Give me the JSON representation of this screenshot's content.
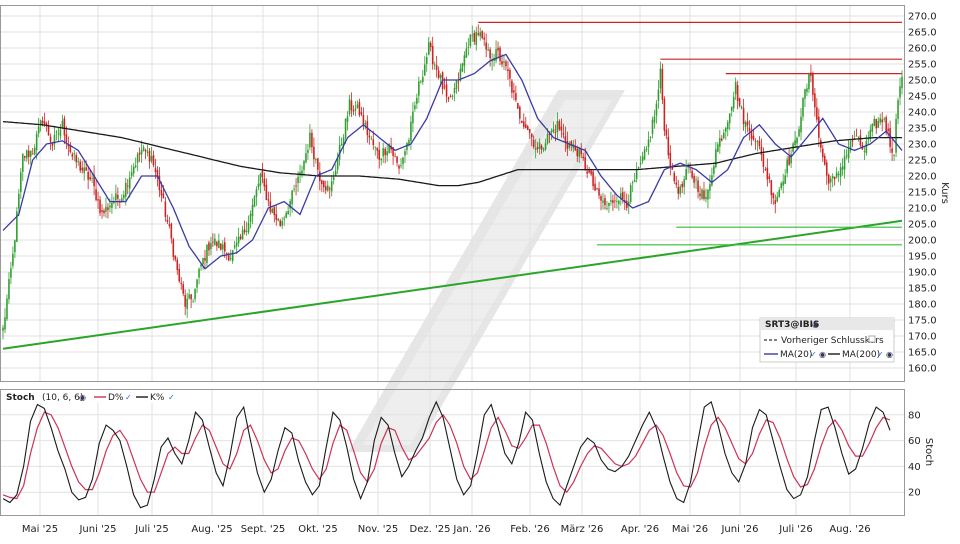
{
  "chart_data": [
    {
      "type": "candlestick",
      "ylabel": "Kurs",
      "ylim": [
        155,
        272
      ],
      "ticks": [
        "160.0",
        "165.0",
        "170.0",
        "175.0",
        "180.0",
        "185.0",
        "190.0",
        "195.0",
        "200.0",
        "205.0",
        "210.0",
        "215.0",
        "220.0",
        "225.0",
        "230.0",
        "235.0",
        "240.0",
        "245.0",
        "250.0",
        "255.0",
        "260.0",
        "265.0",
        "270.0"
      ],
      "legend": {
        "symbol": "SRT3@IBIS",
        "prev_close_label": "Vorheriger Schlusskurs",
        "ma20_label": "MA(20)",
        "ma200_label": "MA(200)"
      },
      "colors": {
        "up": "#2e9e2e",
        "down": "#cc2222",
        "ma20": "#3a3aa6",
        "ma200": "#1a1a1a",
        "trend": "#2aa52a",
        "resistance": "#cc2222",
        "support": "#33bb33"
      },
      "months": [
        "Mai '25",
        "Juni '25",
        "Juli '25",
        "Aug. '25",
        "Sept. '25",
        "Okt. '25",
        "Nov. '25",
        "Dez. '25",
        "Jan. '26",
        "Feb. '26",
        "März '26",
        "Apr. '26",
        "Mai '26",
        "Juni '26",
        "Juli '26",
        "Aug. '26"
      ],
      "price_path": [
        [
          0,
          172
        ],
        [
          5,
          195
        ],
        [
          10,
          226
        ],
        [
          15,
          228
        ],
        [
          20,
          238
        ],
        [
          25,
          230
        ],
        [
          30,
          236
        ],
        [
          35,
          226
        ],
        [
          40,
          222
        ],
        [
          45,
          218
        ],
        [
          50,
          208
        ],
        [
          55,
          212
        ],
        [
          60,
          214
        ],
        [
          65,
          222
        ],
        [
          70,
          228
        ],
        [
          75,
          226
        ],
        [
          80,
          214
        ],
        [
          85,
          200
        ],
        [
          88,
          190
        ],
        [
          92,
          180
        ],
        [
          96,
          182
        ],
        [
          100,
          192
        ],
        [
          105,
          200
        ],
        [
          110,
          198
        ],
        [
          115,
          195
        ],
        [
          120,
          200
        ],
        [
          125,
          208
        ],
        [
          130,
          220
        ],
        [
          135,
          210
        ],
        [
          140,
          205
        ],
        [
          145,
          212
        ],
        [
          150,
          220
        ],
        [
          155,
          232
        ],
        [
          160,
          220
        ],
        [
          165,
          215
        ],
        [
          170,
          228
        ],
        [
          175,
          242
        ],
        [
          180,
          240
        ],
        [
          185,
          232
        ],
        [
          190,
          226
        ],
        [
          195,
          230
        ],
        [
          200,
          222
        ],
        [
          205,
          232
        ],
        [
          210,
          248
        ],
        [
          215,
          260
        ],
        [
          220,
          252
        ],
        [
          225,
          242
        ],
        [
          230,
          250
        ],
        [
          235,
          262
        ],
        [
          240,
          265
        ],
        [
          245,
          258
        ],
        [
          250,
          258
        ],
        [
          255,
          252
        ],
        [
          260,
          240
        ],
        [
          265,
          235
        ],
        [
          270,
          228
        ],
        [
          275,
          232
        ],
        [
          280,
          236
        ],
        [
          285,
          230
        ],
        [
          290,
          228
        ],
        [
          295,
          222
        ],
        [
          300,
          214
        ],
        [
          305,
          210
        ],
        [
          310,
          214
        ],
        [
          315,
          212
        ],
        [
          320,
          220
        ],
        [
          325,
          228
        ],
        [
          330,
          242
        ],
        [
          332,
          252
        ],
        [
          334,
          236
        ],
        [
          338,
          220
        ],
        [
          342,
          215
        ],
        [
          346,
          222
        ],
        [
          350,
          218
        ],
        [
          355,
          212
        ],
        [
          360,
          228
        ],
        [
          365,
          236
        ],
        [
          370,
          248
        ],
        [
          372,
          242
        ],
        [
          375,
          236
        ],
        [
          380,
          232
        ],
        [
          385,
          222
        ],
        [
          390,
          212
        ],
        [
          395,
          222
        ],
        [
          400,
          230
        ],
        [
          405,
          246
        ],
        [
          408,
          252
        ],
        [
          412,
          232
        ],
        [
          416,
          220
        ],
        [
          420,
          218
        ],
        [
          425,
          226
        ],
        [
          430,
          232
        ],
        [
          435,
          228
        ],
        [
          440,
          236
        ],
        [
          445,
          238
        ],
        [
          448,
          230
        ],
        [
          450,
          228
        ],
        [
          452,
          245
        ],
        [
          453,
          250
        ]
      ],
      "ma20_path": [
        [
          0,
          203
        ],
        [
          8,
          208
        ],
        [
          15,
          225
        ],
        [
          22,
          230
        ],
        [
          30,
          231
        ],
        [
          38,
          228
        ],
        [
          46,
          220
        ],
        [
          54,
          212
        ],
        [
          62,
          212
        ],
        [
          70,
          220
        ],
        [
          78,
          220
        ],
        [
          86,
          210
        ],
        [
          94,
          198
        ],
        [
          102,
          191
        ],
        [
          110,
          195
        ],
        [
          118,
          196
        ],
        [
          126,
          200
        ],
        [
          134,
          210
        ],
        [
          142,
          212
        ],
        [
          150,
          208
        ],
        [
          158,
          220
        ],
        [
          166,
          222
        ],
        [
          174,
          232
        ],
        [
          182,
          236
        ],
        [
          190,
          232
        ],
        [
          198,
          228
        ],
        [
          206,
          230
        ],
        [
          214,
          238
        ],
        [
          222,
          250
        ],
        [
          230,
          250
        ],
        [
          238,
          252
        ],
        [
          246,
          256
        ],
        [
          254,
          258
        ],
        [
          262,
          250
        ],
        [
          270,
          238
        ],
        [
          278,
          232
        ],
        [
          286,
          230
        ],
        [
          294,
          228
        ],
        [
          302,
          220
        ],
        [
          310,
          214
        ],
        [
          318,
          210
        ],
        [
          326,
          212
        ],
        [
          334,
          222
        ],
        [
          342,
          224
        ],
        [
          350,
          222
        ],
        [
          358,
          218
        ],
        [
          366,
          222
        ],
        [
          374,
          232
        ],
        [
          382,
          236
        ],
        [
          390,
          230
        ],
        [
          398,
          226
        ],
        [
          406,
          232
        ],
        [
          414,
          238
        ],
        [
          422,
          230
        ],
        [
          430,
          228
        ],
        [
          438,
          230
        ],
        [
          446,
          234
        ],
        [
          454,
          228
        ]
      ],
      "ma200_path": [
        [
          0,
          237
        ],
        [
          20,
          236
        ],
        [
          40,
          234
        ],
        [
          60,
          232
        ],
        [
          80,
          229
        ],
        [
          100,
          226
        ],
        [
          120,
          223
        ],
        [
          140,
          221
        ],
        [
          160,
          220
        ],
        [
          180,
          220
        ],
        [
          200,
          219
        ],
        [
          210,
          218
        ],
        [
          220,
          217
        ],
        [
          230,
          217
        ],
        [
          240,
          218
        ],
        [
          250,
          220
        ],
        [
          260,
          222
        ],
        [
          270,
          222
        ],
        [
          280,
          222
        ],
        [
          300,
          222
        ],
        [
          320,
          222
        ],
        [
          340,
          223
        ],
        [
          360,
          224
        ],
        [
          380,
          227
        ],
        [
          400,
          229
        ],
        [
          420,
          231
        ],
        [
          440,
          232
        ],
        [
          454,
          232
        ]
      ],
      "trend_line": {
        "start": [
          0,
          166
        ],
        "end": [
          454,
          206
        ]
      },
      "resistance_lines": [
        {
          "start": 240,
          "end": 454,
          "y": 268
        },
        {
          "start": 332,
          "end": 454,
          "y": 256.5
        },
        {
          "start": 365,
          "end": 454,
          "y": 252
        }
      ],
      "support_lines": [
        {
          "start": 340,
          "end": 454,
          "y": 204
        },
        {
          "start": 300,
          "end": 454,
          "y": 198.5
        }
      ]
    },
    {
      "type": "line",
      "title": "Stoch",
      "params": "(10, 6, 6)",
      "ylabel": "Stoch",
      "ylim": [
        0,
        100
      ],
      "ticks": [
        "20",
        "40",
        "60",
        "80"
      ],
      "series": [
        {
          "name": "D%",
          "color": "#cc3355"
        },
        {
          "name": "K%",
          "color": "#1a1a1a"
        }
      ],
      "k_values": [
        15,
        12,
        18,
        40,
        75,
        88,
        85,
        70,
        52,
        38,
        20,
        14,
        16,
        30,
        58,
        72,
        68,
        60,
        40,
        18,
        8,
        10,
        30,
        55,
        62,
        50,
        42,
        60,
        82,
        76,
        55,
        35,
        25,
        48,
        78,
        86,
        60,
        35,
        20,
        30,
        52,
        70,
        66,
        44,
        28,
        18,
        25,
        55,
        82,
        76,
        55,
        30,
        15,
        28,
        60,
        78,
        72,
        50,
        32,
        40,
        52,
        62,
        78,
        90,
        78,
        54,
        30,
        18,
        25,
        50,
        80,
        88,
        70,
        50,
        42,
        58,
        82,
        76,
        50,
        28,
        15,
        10,
        25,
        40,
        55,
        62,
        58,
        45,
        38,
        36,
        40,
        48,
        60,
        72,
        82,
        70,
        48,
        28,
        15,
        12,
        28,
        58,
        86,
        90,
        72,
        50,
        35,
        28,
        42,
        70,
        84,
        80,
        60,
        40,
        22,
        15,
        18,
        32,
        60,
        84,
        86,
        70,
        50,
        34,
        38,
        54,
        74,
        86,
        82,
        68
      ],
      "d_values": [
        18,
        16,
        15,
        25,
        50,
        70,
        82,
        80,
        70,
        55,
        40,
        28,
        22,
        22,
        35,
        52,
        64,
        68,
        60,
        45,
        30,
        20,
        20,
        35,
        50,
        55,
        50,
        50,
        62,
        72,
        68,
        55,
        42,
        38,
        50,
        68,
        72,
        60,
        45,
        35,
        38,
        52,
        62,
        60,
        50,
        38,
        30,
        38,
        58,
        72,
        68,
        52,
        35,
        28,
        38,
        58,
        70,
        68,
        55,
        45,
        48,
        55,
        62,
        74,
        80,
        72,
        58,
        40,
        30,
        35,
        52,
        70,
        78,
        68,
        56,
        54,
        62,
        72,
        72,
        58,
        40,
        25,
        20,
        28,
        40,
        50,
        56,
        54,
        48,
        42,
        40,
        42,
        48,
        58,
        68,
        72,
        64,
        50,
        35,
        25,
        24,
        35,
        55,
        72,
        78,
        70,
        58,
        46,
        42,
        50,
        65,
        76,
        74,
        62,
        46,
        32,
        24,
        26,
        38,
        56,
        70,
        76,
        68,
        56,
        48,
        48,
        58,
        70,
        78,
        76
      ]
    }
  ]
}
